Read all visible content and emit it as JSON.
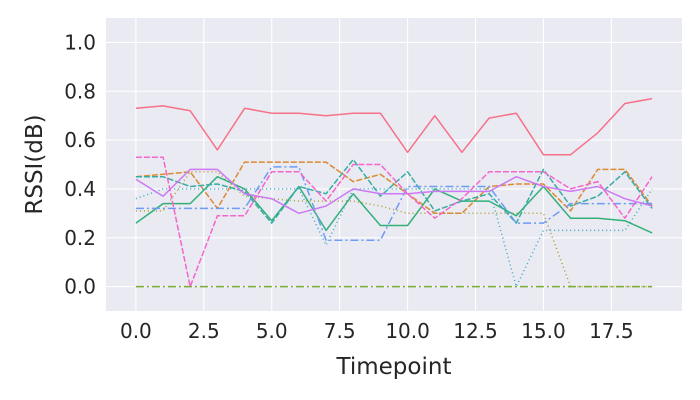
{
  "chart_data": {
    "type": "line",
    "title": "",
    "xlabel": "Timepoint",
    "ylabel": "RSSI(dB)",
    "xlim": [
      -1.1,
      20.1
    ],
    "ylim": [
      -0.1,
      1.1
    ],
    "x_ticks": [
      "0.0",
      "2.5",
      "5.0",
      "7.5",
      "10.0",
      "12.5",
      "15.0",
      "17.5"
    ],
    "x_tick_values": [
      0,
      2.5,
      5,
      7.5,
      10,
      12.5,
      15,
      17.5
    ],
    "y_ticks": [
      "0.0",
      "0.2",
      "0.4",
      "0.6",
      "0.8",
      "1.0"
    ],
    "y_tick_values": [
      0,
      0.2,
      0.4,
      0.6,
      0.8,
      1.0
    ],
    "background": "#eaeaf2",
    "grid": true,
    "legend": "none",
    "x": [
      0,
      1,
      2,
      3,
      4,
      5,
      6,
      7,
      8,
      9,
      10,
      11,
      12,
      13,
      14,
      15,
      16,
      17,
      18,
      19
    ],
    "series": [
      {
        "color": "#f77189",
        "dash": "",
        "values": [
          0.73,
          0.74,
          0.72,
          0.56,
          0.73,
          0.71,
          0.71,
          0.7,
          0.71,
          0.71,
          0.55,
          0.7,
          0.55,
          0.69,
          0.71,
          0.54,
          0.54,
          0.63,
          0.75,
          0.77
        ]
      },
      {
        "color": "#dc8932",
        "dash": "6 2",
        "values": [
          0.45,
          0.46,
          0.47,
          0.32,
          0.51,
          0.51,
          0.51,
          0.51,
          0.43,
          0.46,
          0.38,
          0.3,
          0.3,
          0.41,
          0.42,
          0.42,
          0.31,
          0.48,
          0.48,
          0.33
        ]
      },
      {
        "color": "#ae9d31",
        "dash": "1 3",
        "values": [
          0.31,
          0.31,
          0.47,
          0.47,
          0.37,
          0.36,
          0.35,
          0.35,
          0.35,
          0.33,
          0.3,
          0.3,
          0.3,
          0.3,
          0.3,
          0.3,
          0.0,
          0.0,
          0.0,
          0.0
        ]
      },
      {
        "color": "#77ab31",
        "dash": "8 3 2 3",
        "values": [
          0.0,
          0.0,
          0.0,
          0.0,
          0.0,
          0.0,
          0.0,
          0.0,
          0.0,
          0.0,
          0.0,
          0.0,
          0.0,
          0.0,
          0.0,
          0.0,
          0.0,
          0.0,
          0.0,
          0.0
        ]
      },
      {
        "color": "#33b07a",
        "dash": "",
        "values": [
          0.26,
          0.34,
          0.34,
          0.45,
          0.4,
          0.27,
          0.41,
          0.23,
          0.38,
          0.25,
          0.25,
          0.4,
          0.35,
          0.35,
          0.29,
          0.41,
          0.28,
          0.28,
          0.27,
          0.22
        ]
      },
      {
        "color": "#36ada4",
        "dash": "6 2",
        "values": [
          0.45,
          0.45,
          0.41,
          0.42,
          0.39,
          0.26,
          0.41,
          0.38,
          0.52,
          0.37,
          0.47,
          0.31,
          0.35,
          0.38,
          0.26,
          0.48,
          0.33,
          0.37,
          0.47,
          0.32
        ]
      },
      {
        "color": "#38a9c5",
        "dash": "1 3",
        "values": [
          0.36,
          0.4,
          0.4,
          0.4,
          0.4,
          0.4,
          0.4,
          0.17,
          0.4,
          0.4,
          0.4,
          0.4,
          0.4,
          0.4,
          0.0,
          0.23,
          0.23,
          0.23,
          0.23,
          0.4
        ]
      },
      {
        "color": "#6e9bf4",
        "dash": "8 3 2 3",
        "values": [
          0.32,
          0.32,
          0.32,
          0.32,
          0.32,
          0.49,
          0.49,
          0.19,
          0.19,
          0.19,
          0.41,
          0.41,
          0.41,
          0.41,
          0.26,
          0.26,
          0.34,
          0.34,
          0.34,
          0.34
        ]
      },
      {
        "color": "#cc7af4",
        "dash": "",
        "values": [
          0.44,
          0.37,
          0.48,
          0.48,
          0.38,
          0.36,
          0.3,
          0.33,
          0.4,
          0.38,
          0.38,
          0.39,
          0.39,
          0.39,
          0.45,
          0.41,
          0.39,
          0.41,
          0.36,
          0.33
        ]
      },
      {
        "color": "#f565cc",
        "dash": "6 2",
        "values": [
          0.53,
          0.53,
          0.0,
          0.29,
          0.29,
          0.47,
          0.47,
          0.35,
          0.5,
          0.5,
          0.38,
          0.28,
          0.36,
          0.47,
          0.47,
          0.47,
          0.4,
          0.43,
          0.28,
          0.45
        ]
      }
    ]
  }
}
